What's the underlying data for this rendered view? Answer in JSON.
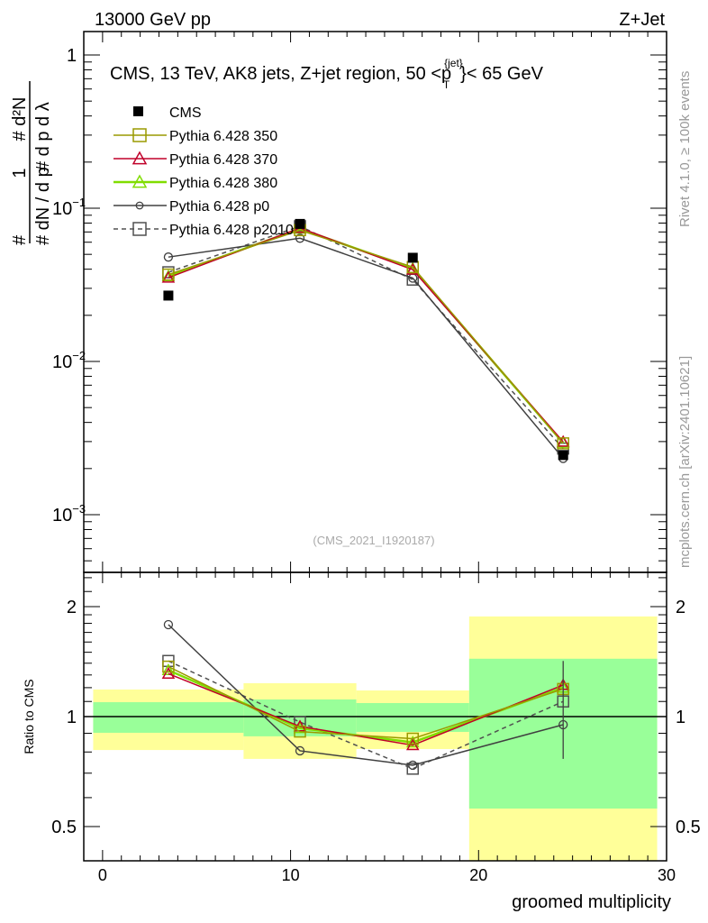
{
  "chart_data": [
    {
      "type": "line",
      "panel": "main",
      "header_left": "13000 GeV pp",
      "header_right": "Z+Jet",
      "title": "CMS, 13 TeV, AK8 jets, Z+jet region, 50 <p",
      "title_sup": "{jet}",
      "title_sub": "T",
      "title_end": "}< 65 GeV",
      "ylabel_left_num": "1",
      "ylabel_left_den": "# dN / d p",
      "ylabel_right_num": "# d²N",
      "ylabel_right_den": "# d p   d λ",
      "ylabel_sub": "T",
      "yscale": "log",
      "ylim": [
        0.0004,
        1.5
      ],
      "xlim": [
        -1,
        30
      ],
      "yticks": [
        {
          "base": "1",
          "exp": ""
        },
        {
          "base": "10",
          "exp": "−1"
        },
        {
          "base": "10",
          "exp": "−2"
        },
        {
          "base": "10",
          "exp": "−3"
        }
      ],
      "ytick_values": [
        1,
        0.1,
        0.01,
        0.001
      ],
      "watermark": "(CMS_2021_I1920187)",
      "side_text_top": "Rivet 4.1.0, ≥ 100k events",
      "side_text_bottom": "mcplots.cern.ch [arXiv:2401.10621]",
      "x": [
        3.5,
        10.5,
        16.5,
        24.5
      ],
      "bins": [
        [
          -0.5,
          7.5
        ],
        [
          7.5,
          13.5
        ],
        [
          13.5,
          19.5
        ],
        [
          19.5,
          29.5
        ]
      ],
      "legend": [
        "CMS",
        "Pythia 6.428 350",
        "Pythia 6.428 370",
        "Pythia 6.428 380",
        "Pythia 6.428 p0",
        "Pythia 6.428 p2010"
      ],
      "data": {
        "name": "CMS",
        "values": [
          0.0269,
          0.079,
          0.0475,
          0.00245
        ],
        "color": "#000000"
      },
      "series": [
        {
          "name": "Pythia 6.428 350",
          "values": [
            0.0369,
            0.0719,
            0.0413,
            0.00292
          ],
          "color": "#9a9a00",
          "marker": "square",
          "dash": false
        },
        {
          "name": "Pythia 6.428 370",
          "values": [
            0.0352,
            0.0743,
            0.0397,
            0.00299
          ],
          "color": "#c0002a",
          "marker": "triangle",
          "dash": false
        },
        {
          "name": "Pythia 6.428 380",
          "values": [
            0.036,
            0.0735,
            0.0404,
            0.00294
          ],
          "color": "#80dd00",
          "marker": "triangle",
          "dash": false
        },
        {
          "name": "Pythia 6.428 p0",
          "values": [
            0.048,
            0.0637,
            0.035,
            0.00233
          ],
          "color": "#404040",
          "marker": "circle",
          "dash": false
        },
        {
          "name": "Pythia 6.428 p2010",
          "values": [
            0.0382,
            0.0763,
            0.0342,
            0.0027
          ],
          "color": "#505050",
          "marker": "square",
          "dash": true
        }
      ]
    },
    {
      "type": "line",
      "panel": "ratio",
      "ylabel": "Ratio to CMS",
      "xlabel": "groomed multiplicity",
      "yscale": "log",
      "ylim": [
        0.4,
        2.48
      ],
      "xlim": [
        -1,
        30
      ],
      "yticks": [
        "2",
        "1",
        "0.5"
      ],
      "ytick_values": [
        2,
        1,
        0.5
      ],
      "xticks": [
        "0",
        "10",
        "20",
        "30"
      ],
      "xtick_values": [
        0,
        10,
        20,
        30
      ],
      "x": [
        3.5,
        10.5,
        16.5,
        24.5
      ],
      "band_green": [
        [
          0.903,
          1.095
        ],
        [
          0.883,
          1.114
        ],
        [
          0.908,
          1.089
        ],
        [
          0.56,
          1.44
        ]
      ],
      "band_yellow": [
        [
          0.81,
          1.186
        ],
        [
          0.766,
          1.234
        ],
        [
          0.815,
          1.179
        ],
        [
          0.4,
          1.88
        ]
      ],
      "series": [
        {
          "name": "Pythia 6.428 350",
          "values": [
            1.37,
            0.91,
            0.87,
            1.19
          ],
          "color": "#9a9a00",
          "marker": "square",
          "dash": false
        },
        {
          "name": "Pythia 6.428 370",
          "values": [
            1.31,
            0.94,
            0.835,
            1.22
          ],
          "color": "#c0002a",
          "marker": "triangle",
          "dash": false
        },
        {
          "name": "Pythia 6.428 380",
          "values": [
            1.34,
            0.93,
            0.85,
            1.2
          ],
          "color": "#80dd00",
          "marker": "triangle",
          "dash": false
        },
        {
          "name": "Pythia 6.428 p0",
          "values": [
            1.785,
            0.806,
            0.736,
            0.95
          ],
          "color": "#404040",
          "marker": "circle",
          "dash": false
        },
        {
          "name": "Pythia 6.428 p2010",
          "values": [
            1.42,
            0.966,
            0.72,
            1.1
          ],
          "color": "#505050",
          "marker": "square",
          "dash": true
        }
      ]
    }
  ]
}
